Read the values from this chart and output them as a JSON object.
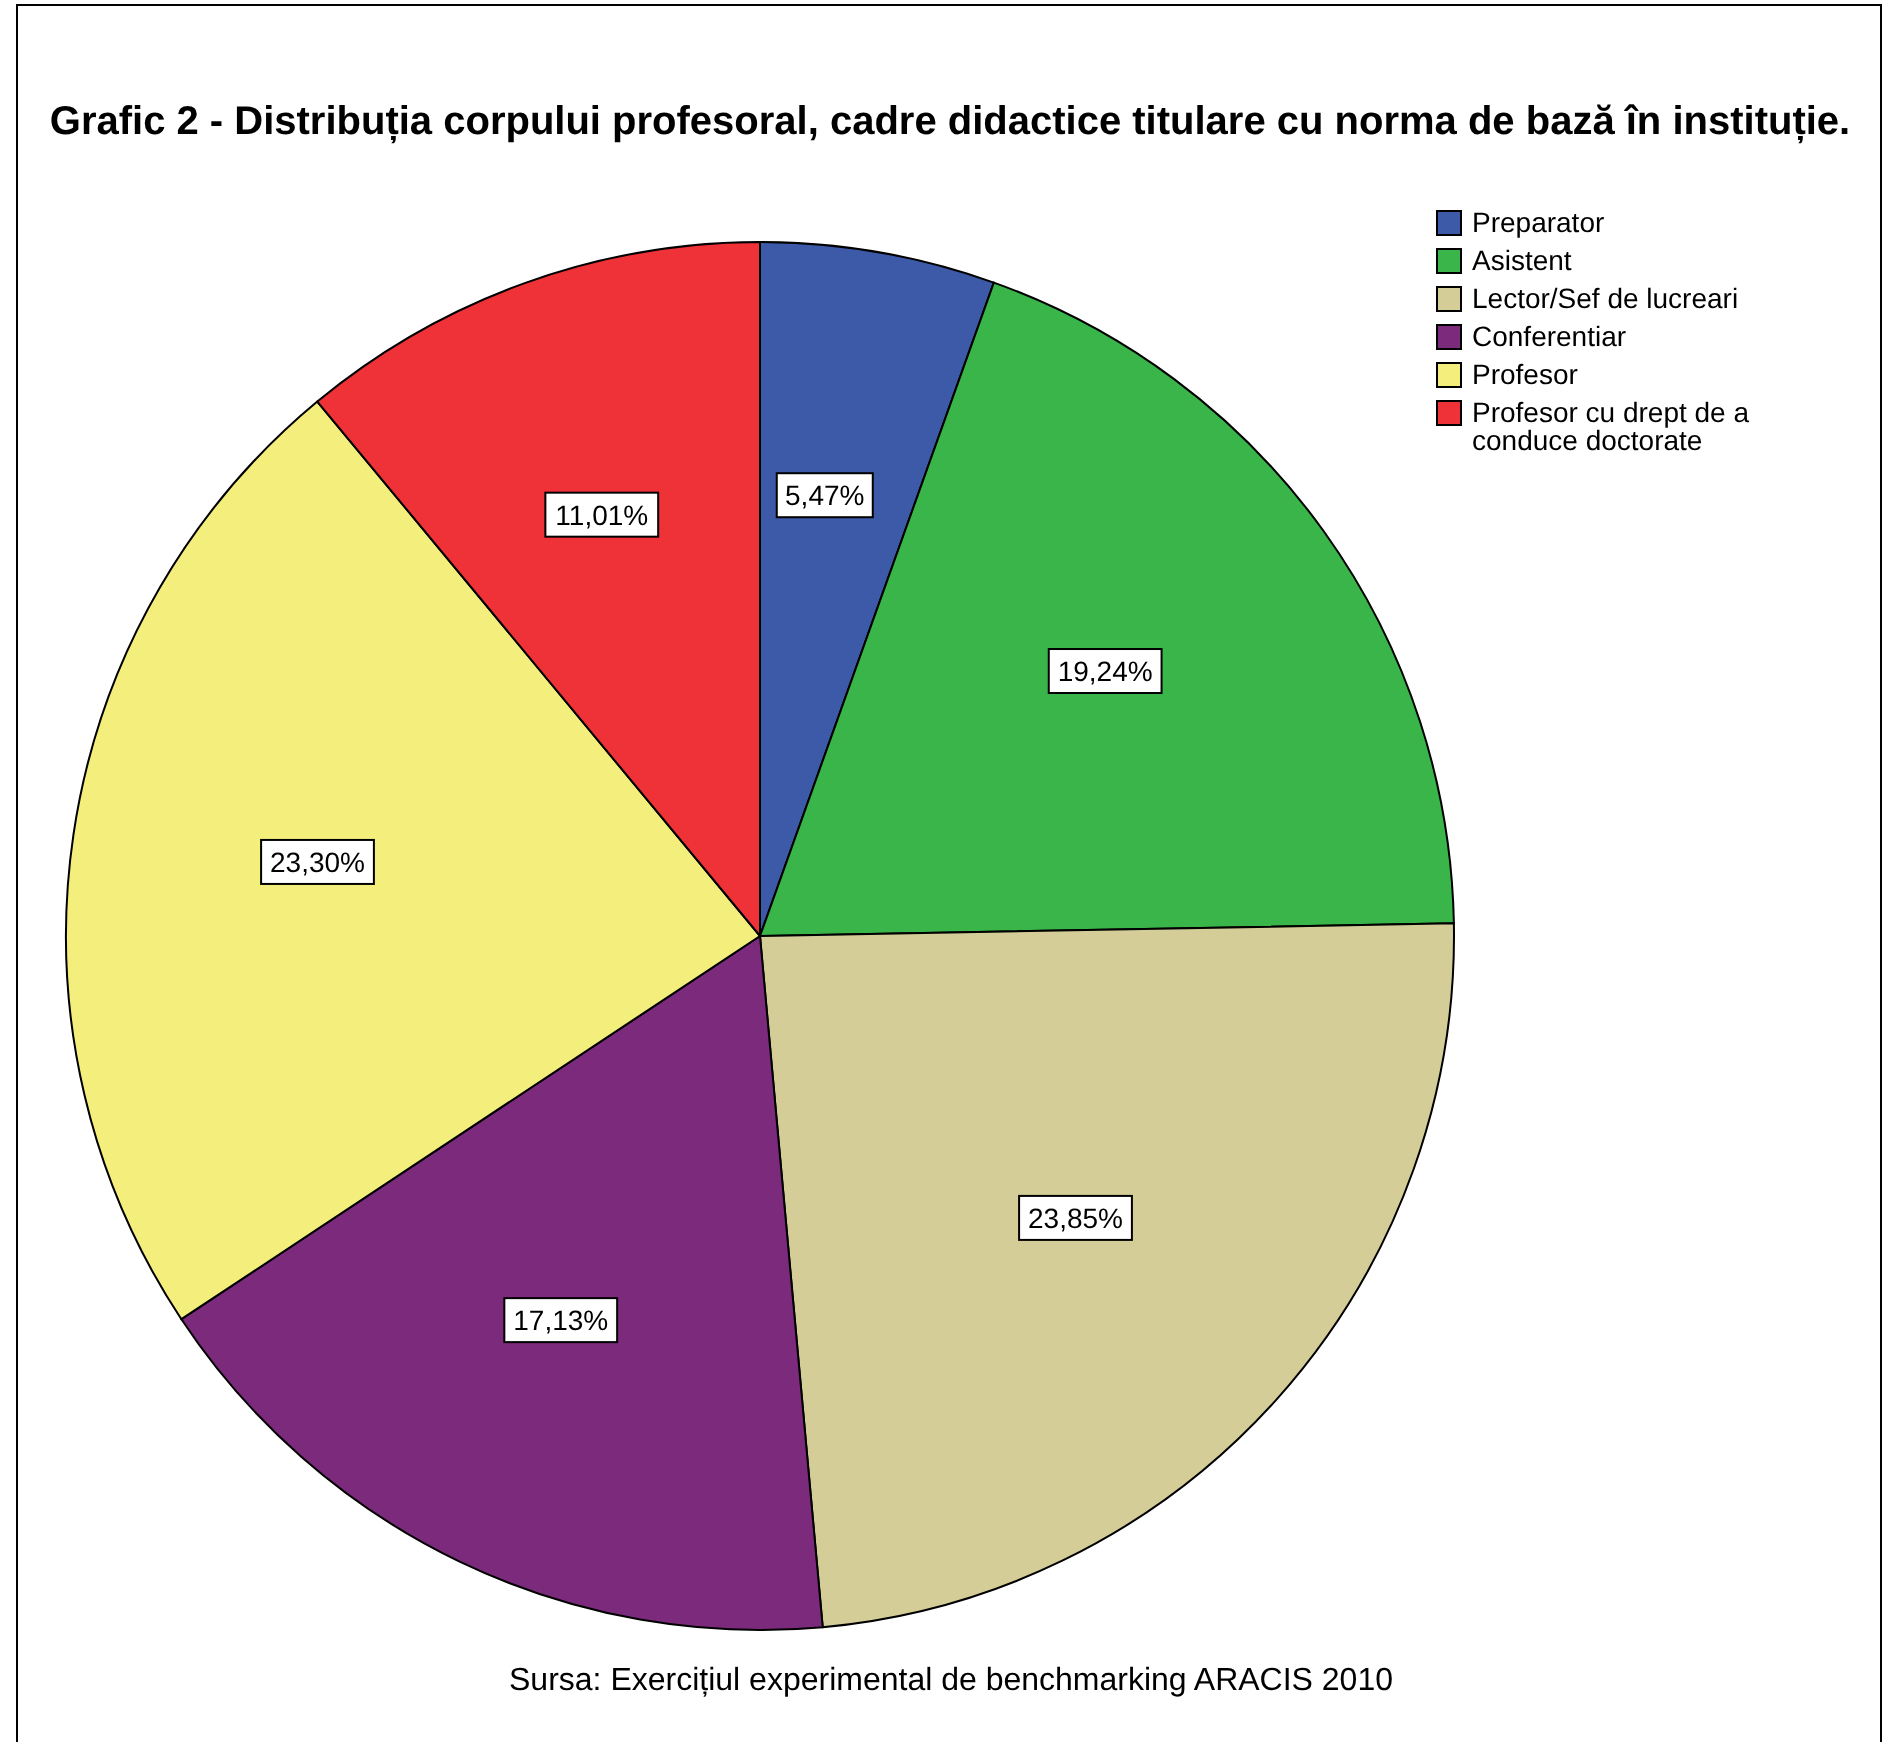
{
  "chart_data": {
    "type": "pie",
    "title": "Grafic 2 - Distribuția corpului profesoral, cadre didactice titulare cu norma de bază în instituție.",
    "categories": [
      "Preparator",
      "Asistent",
      "Lector/Sef de lucreari",
      "Conferentiar",
      "Profesor",
      "Profesor cu drept de a conduce doctorate"
    ],
    "values": [
      5.47,
      19.24,
      23.85,
      17.13,
      23.3,
      11.01
    ],
    "colors": [
      "#3d5aa8",
      "#39b54a",
      "#d4cd97",
      "#7b2a7c",
      "#f4ee7c",
      "#ee3238"
    ],
    "value_labels": [
      "5,47%",
      "19,24%",
      "23,85%",
      "17,13%",
      "23,30%",
      "11,01%"
    ],
    "legend": "top right",
    "annotations": [
      "Sursa: Exercițiul experimental de benchmarking ARACIS 2010"
    ]
  }
}
